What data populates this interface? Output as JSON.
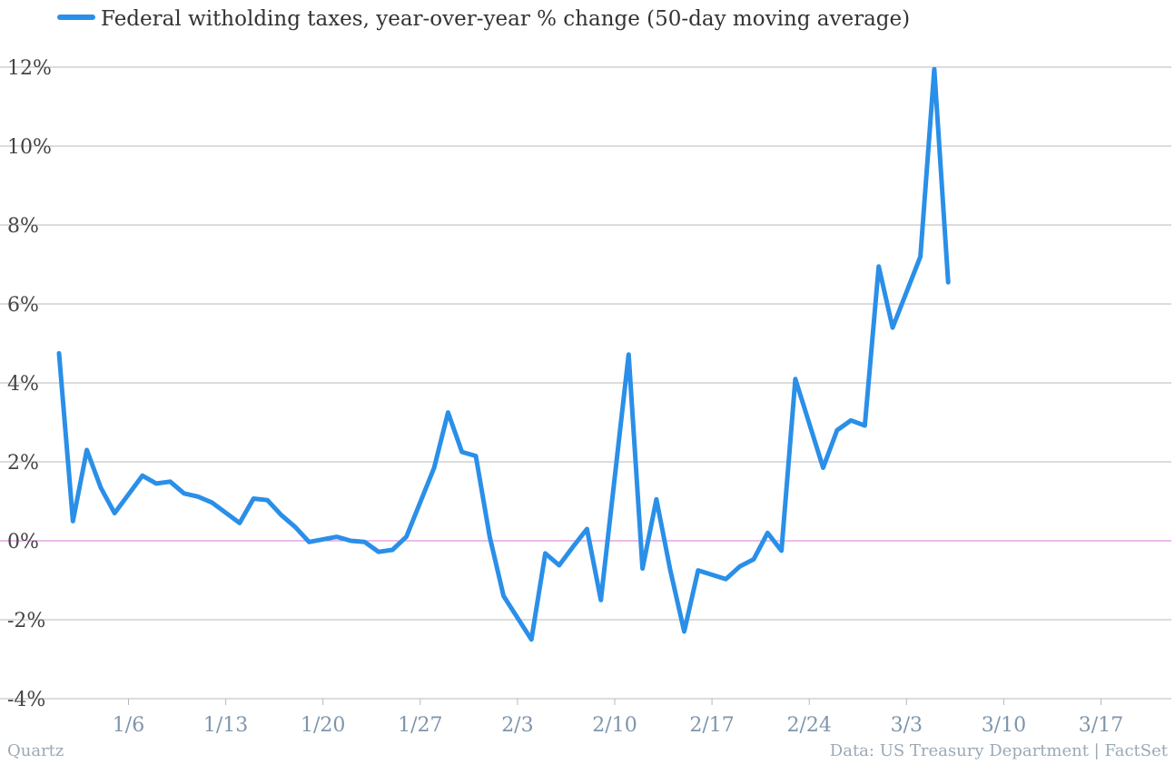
{
  "colors": {
    "series": "#2a8fe8",
    "zero_line": "#d47ad8",
    "grid": "#b9b9b9"
  },
  "footer": {
    "left": "Quartz",
    "right": "Data: US Treasury Department | FactSet"
  },
  "chart_data": {
    "type": "line",
    "title": "",
    "xlabel": "",
    "ylabel": "",
    "ylim": [
      -4,
      12
    ],
    "yticks": [
      {
        "value": 12,
        "label": "12%"
      },
      {
        "value": 10,
        "label": "10%"
      },
      {
        "value": 8,
        "label": "8%"
      },
      {
        "value": 6,
        "label": "6%"
      },
      {
        "value": 4,
        "label": "4%"
      },
      {
        "value": 2,
        "label": "2%"
      },
      {
        "value": 0,
        "label": "0%"
      },
      {
        "value": -2,
        "label": "-2%"
      },
      {
        "value": -4,
        "label": "-4%"
      }
    ],
    "xticks": [
      {
        "date": "1/6",
        "label": "1/6"
      },
      {
        "date": "1/13",
        "label": "1/13"
      },
      {
        "date": "1/20",
        "label": "1/20"
      },
      {
        "date": "1/27",
        "label": "1/27"
      },
      {
        "date": "2/3",
        "label": "2/3"
      },
      {
        "date": "2/10",
        "label": "2/10"
      },
      {
        "date": "2/17",
        "label": "2/17"
      },
      {
        "date": "2/24",
        "label": "2/24"
      },
      {
        "date": "3/3",
        "label": "3/3"
      },
      {
        "date": "3/10",
        "label": "3/10"
      },
      {
        "date": "3/17",
        "label": "3/17"
      }
    ],
    "grid": true,
    "legend": "top-left",
    "series": [
      {
        "name": "Federal witholding taxes, year-over-year % change (50-day moving average)",
        "color": "#2a8fe8",
        "points": [
          {
            "date": "1/1",
            "y": 4.75
          },
          {
            "date": "1/2",
            "y": 0.5
          },
          {
            "date": "1/3",
            "y": 2.3
          },
          {
            "date": "1/4",
            "y": 1.35
          },
          {
            "date": "1/5",
            "y": 0.7
          },
          {
            "date": "1/7",
            "y": 1.65
          },
          {
            "date": "1/8",
            "y": 1.45
          },
          {
            "date": "1/9",
            "y": 1.5
          },
          {
            "date": "1/10",
            "y": 1.2
          },
          {
            "date": "1/11",
            "y": 1.12
          },
          {
            "date": "1/12",
            "y": 0.97
          },
          {
            "date": "1/14",
            "y": 0.45
          },
          {
            "date": "1/15",
            "y": 1.07
          },
          {
            "date": "1/16",
            "y": 1.03
          },
          {
            "date": "1/17",
            "y": 0.65
          },
          {
            "date": "1/18",
            "y": 0.35
          },
          {
            "date": "1/19",
            "y": -0.03
          },
          {
            "date": "1/21",
            "y": 0.1
          },
          {
            "date": "1/22",
            "y": 0.0
          },
          {
            "date": "1/23",
            "y": -0.03
          },
          {
            "date": "1/24",
            "y": -0.28
          },
          {
            "date": "1/25",
            "y": -0.23
          },
          {
            "date": "1/26",
            "y": 0.1
          },
          {
            "date": "1/28",
            "y": 1.85
          },
          {
            "date": "1/29",
            "y": 3.25
          },
          {
            "date": "1/30",
            "y": 2.25
          },
          {
            "date": "1/31",
            "y": 2.15
          },
          {
            "date": "2/1",
            "y": 0.1
          },
          {
            "date": "2/2",
            "y": -1.4
          },
          {
            "date": "2/4",
            "y": -2.5
          },
          {
            "date": "2/5",
            "y": -0.32
          },
          {
            "date": "2/6",
            "y": -0.62
          },
          {
            "date": "2/7",
            "y": -0.15
          },
          {
            "date": "2/8",
            "y": 0.3
          },
          {
            "date": "2/9",
            "y": -1.5
          },
          {
            "date": "2/11",
            "y": 4.72
          },
          {
            "date": "2/12",
            "y": -0.7
          },
          {
            "date": "2/13",
            "y": 1.05
          },
          {
            "date": "2/14",
            "y": -0.75
          },
          {
            "date": "2/15",
            "y": -2.3
          },
          {
            "date": "2/16",
            "y": -0.75
          },
          {
            "date": "2/18",
            "y": -0.97
          },
          {
            "date": "2/19",
            "y": -0.65
          },
          {
            "date": "2/20",
            "y": -0.47
          },
          {
            "date": "2/21",
            "y": 0.2
          },
          {
            "date": "2/22",
            "y": -0.25
          },
          {
            "date": "2/23",
            "y": 4.1
          },
          {
            "date": "2/25",
            "y": 1.85
          },
          {
            "date": "2/26",
            "y": 2.8
          },
          {
            "date": "2/27",
            "y": 3.05
          },
          {
            "date": "2/28",
            "y": 2.92
          },
          {
            "date": "3/1",
            "y": 6.95
          },
          {
            "date": "3/2",
            "y": 5.4
          },
          {
            "date": "3/4",
            "y": 7.2
          },
          {
            "date": "3/5",
            "y": 11.95
          },
          {
            "date": "3/6",
            "y": 6.55
          }
        ]
      }
    ]
  }
}
